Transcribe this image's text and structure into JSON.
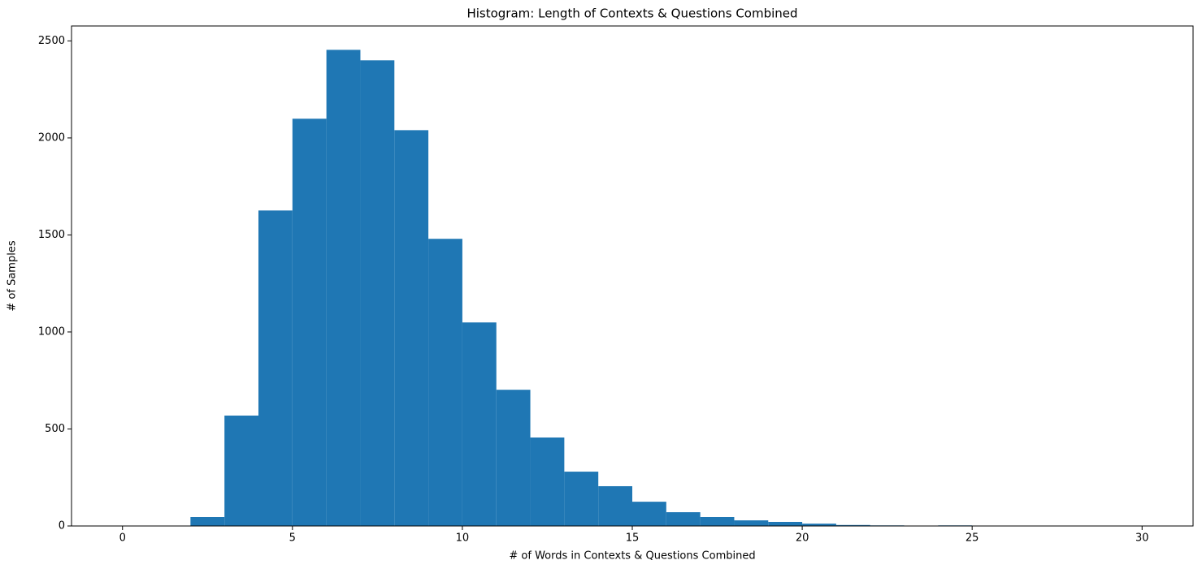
{
  "chart_data": {
    "type": "histogram",
    "title": "Histogram: Length of Contexts & Questions Combined",
    "x_label": "# of Words in Contexts & Questions Combined",
    "y_label": "# of Samples",
    "bins": [
      0,
      1,
      2,
      3,
      4,
      5,
      6,
      7,
      8,
      9,
      10,
      11,
      12,
      13,
      14,
      15,
      16,
      17,
      18,
      19,
      20,
      21,
      22,
      23,
      24,
      25,
      26,
      27,
      28,
      29,
      30
    ],
    "values": [
      0,
      0,
      46,
      569,
      1626,
      2099,
      2454,
      2400,
      2040,
      1480,
      1049,
      702,
      456,
      280,
      205,
      125,
      71,
      46,
      29,
      21,
      12,
      5,
      3,
      2,
      3,
      2,
      0,
      0,
      2,
      0
    ],
    "color": "#1f77b4",
    "xlim": [
      -1.5,
      31.5
    ],
    "xticks": [
      0,
      5,
      10,
      15,
      20,
      25,
      30
    ],
    "ylim": [
      0,
      2577
    ],
    "yticks": [
      0,
      500,
      1000,
      1500,
      2000,
      2500
    ]
  }
}
